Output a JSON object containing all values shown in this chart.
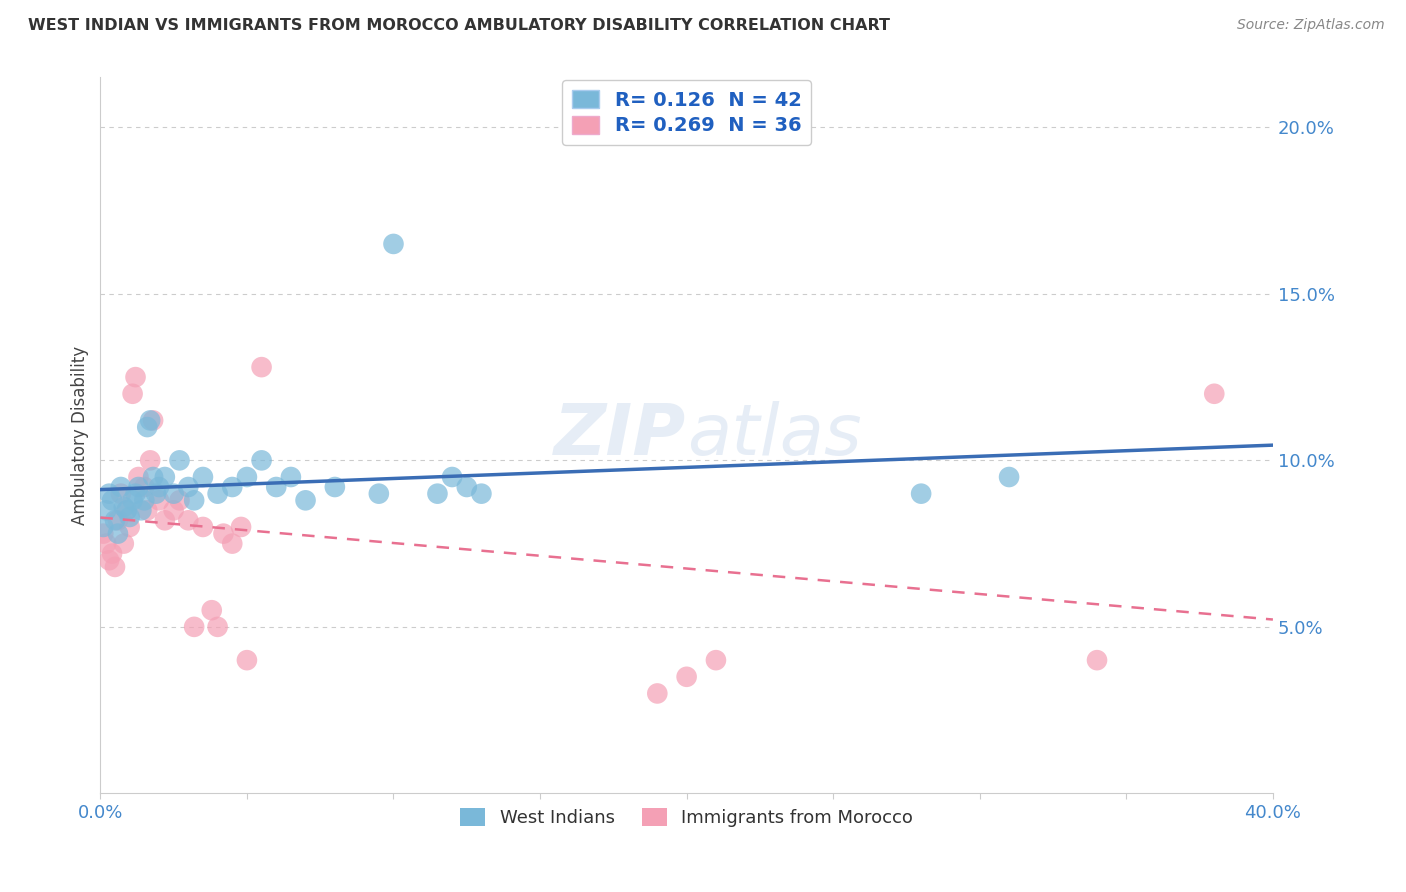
{
  "title": "WEST INDIAN VS IMMIGRANTS FROM MOROCCO AMBULATORY DISABILITY CORRELATION CHART",
  "source": "Source: ZipAtlas.com",
  "ylabel": "Ambulatory Disability",
  "xlim": [
    0.0,
    0.4
  ],
  "ylim": [
    0.0,
    0.215
  ],
  "ytick_vals": [
    0.05,
    0.1,
    0.15,
    0.2
  ],
  "ytick_labels": [
    "5.0%",
    "10.0%",
    "15.0%",
    "20.0%"
  ],
  "xtick_vals": [
    0.0,
    0.05,
    0.1,
    0.15,
    0.2,
    0.25,
    0.3,
    0.35,
    0.4
  ],
  "xtick_labels": [
    "0.0%",
    "",
    "",
    "",
    "",
    "",
    "",
    "",
    "40.0%"
  ],
  "grid_color": "#cccccc",
  "background_color": "#ffffff",
  "blue_color": "#7ab8d9",
  "pink_color": "#f4a0b5",
  "blue_line_color": "#3a6db5",
  "pink_line_color": "#e87090",
  "R_blue": 0.126,
  "N_blue": 42,
  "R_pink": 0.269,
  "N_pink": 36,
  "legend_text_color": "#2060c0",
  "west_indian_x": [
    0.001,
    0.002,
    0.003,
    0.004,
    0.005,
    0.006,
    0.007,
    0.008,
    0.009,
    0.01,
    0.011,
    0.012,
    0.013,
    0.014,
    0.015,
    0.016,
    0.017,
    0.018,
    0.019,
    0.02,
    0.022,
    0.025,
    0.027,
    0.03,
    0.032,
    0.035,
    0.04,
    0.045,
    0.05,
    0.055,
    0.06,
    0.065,
    0.07,
    0.08,
    0.095,
    0.1,
    0.115,
    0.12,
    0.125,
    0.13,
    0.28,
    0.31
  ],
  "west_indian_y": [
    0.08,
    0.085,
    0.09,
    0.088,
    0.082,
    0.078,
    0.092,
    0.086,
    0.085,
    0.083,
    0.088,
    0.09,
    0.092,
    0.085,
    0.088,
    0.11,
    0.112,
    0.095,
    0.09,
    0.092,
    0.095,
    0.09,
    0.1,
    0.092,
    0.088,
    0.095,
    0.09,
    0.092,
    0.095,
    0.1,
    0.092,
    0.095,
    0.088,
    0.092,
    0.09,
    0.165,
    0.09,
    0.095,
    0.092,
    0.09,
    0.09,
    0.095
  ],
  "morocco_x": [
    0.001,
    0.002,
    0.003,
    0.004,
    0.005,
    0.006,
    0.007,
    0.008,
    0.009,
    0.01,
    0.011,
    0.012,
    0.013,
    0.015,
    0.016,
    0.017,
    0.018,
    0.02,
    0.022,
    0.025,
    0.027,
    0.03,
    0.032,
    0.035,
    0.038,
    0.04,
    0.042,
    0.045,
    0.048,
    0.05,
    0.055,
    0.19,
    0.2,
    0.21,
    0.34,
    0.38
  ],
  "morocco_y": [
    0.078,
    0.075,
    0.07,
    0.072,
    0.068,
    0.082,
    0.09,
    0.075,
    0.085,
    0.08,
    0.12,
    0.125,
    0.095,
    0.092,
    0.085,
    0.1,
    0.112,
    0.088,
    0.082,
    0.085,
    0.088,
    0.082,
    0.05,
    0.08,
    0.055,
    0.05,
    0.078,
    0.075,
    0.08,
    0.04,
    0.128,
    0.03,
    0.035,
    0.04,
    0.04,
    0.12
  ]
}
